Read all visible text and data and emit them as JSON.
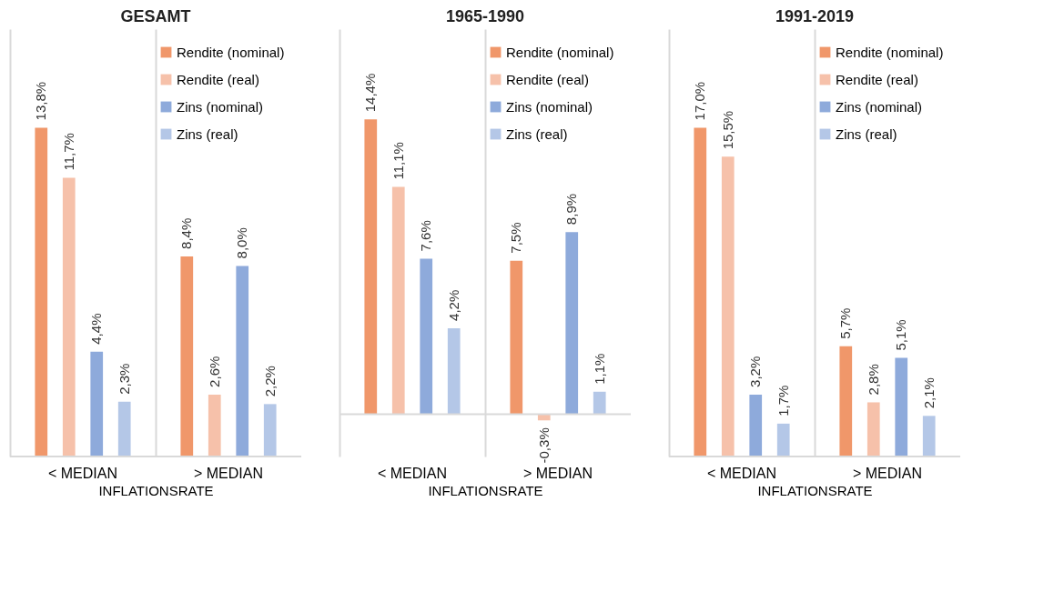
{
  "chart_data": [
    {
      "type": "bar",
      "title": "GESAMT",
      "xlabel": "INFLATIONSRATE",
      "categories": [
        "< MEDIAN",
        "> MEDIAN"
      ],
      "legend": "top right",
      "grid": "x",
      "data_labels": true,
      "tick_labels": "x",
      "series": [
        {
          "name": "Rendite (nominal)",
          "color": "#f0976a",
          "values": [
            13.8,
            8.4
          ],
          "value_labels": [
            "13,8%",
            "8,4%"
          ]
        },
        {
          "name": "Rendite (real)",
          "color": "#f6c1aa",
          "values": [
            11.7,
            2.6
          ],
          "value_labels": [
            "11,7%",
            "2,6%"
          ]
        },
        {
          "name": "Zins (nominal)",
          "color": "#8eaadb",
          "values": [
            4.4,
            8.0
          ],
          "value_labels": [
            "4,4%",
            "8,0%"
          ]
        },
        {
          "name": "Zins (real)",
          "color": "#b4c7e7",
          "values": [
            2.3,
            2.2
          ],
          "value_labels": [
            "2,3%",
            "2,2%"
          ]
        }
      ]
    },
    {
      "type": "bar",
      "title": "1965-1990",
      "xlabel": "INFLATIONSRATE",
      "categories": [
        "< MEDIAN",
        "> MEDIAN"
      ],
      "legend": "top right",
      "grid": "x",
      "data_labels": true,
      "tick_labels": "x",
      "series": [
        {
          "name": "Rendite (nominal)",
          "color": "#f0976a",
          "values": [
            14.4,
            7.5
          ],
          "value_labels": [
            "14,4%",
            "7,5%"
          ]
        },
        {
          "name": "Rendite (real)",
          "color": "#f6c1aa",
          "values": [
            11.1,
            -0.3
          ],
          "value_labels": [
            "11,1%",
            "-0,3%"
          ]
        },
        {
          "name": "Zins (nominal)",
          "color": "#8eaadb",
          "values": [
            7.6,
            8.9
          ],
          "value_labels": [
            "7,6%",
            "8,9%"
          ]
        },
        {
          "name": "Zins (real)",
          "color": "#b4c7e7",
          "values": [
            4.2,
            1.1
          ],
          "value_labels": [
            "4,2%",
            "1,1%"
          ]
        }
      ]
    },
    {
      "type": "bar",
      "title": "1991-2019",
      "xlabel": "INFLATIONSRATE",
      "categories": [
        "< MEDIAN",
        "> MEDIAN"
      ],
      "legend": "top right",
      "grid": "x",
      "data_labels": true,
      "tick_labels": "x",
      "series": [
        {
          "name": "Rendite (nominal)",
          "color": "#f0976a",
          "values": [
            17.0,
            5.7
          ],
          "value_labels": [
            "17,0%",
            "5,7%"
          ]
        },
        {
          "name": "Rendite (real)",
          "color": "#f6c1aa",
          "values": [
            15.5,
            2.8
          ],
          "value_labels": [
            "15,5%",
            "2,8%"
          ]
        },
        {
          "name": "Zins (nominal)",
          "color": "#8eaadb",
          "values": [
            3.2,
            5.1
          ],
          "value_labels": [
            "3,2%",
            "5,1%"
          ]
        },
        {
          "name": "Zins (real)",
          "color": "#b4c7e7",
          "values": [
            1.7,
            2.1
          ],
          "value_labels": [
            "1,7%",
            "2,1%"
          ]
        }
      ]
    }
  ]
}
